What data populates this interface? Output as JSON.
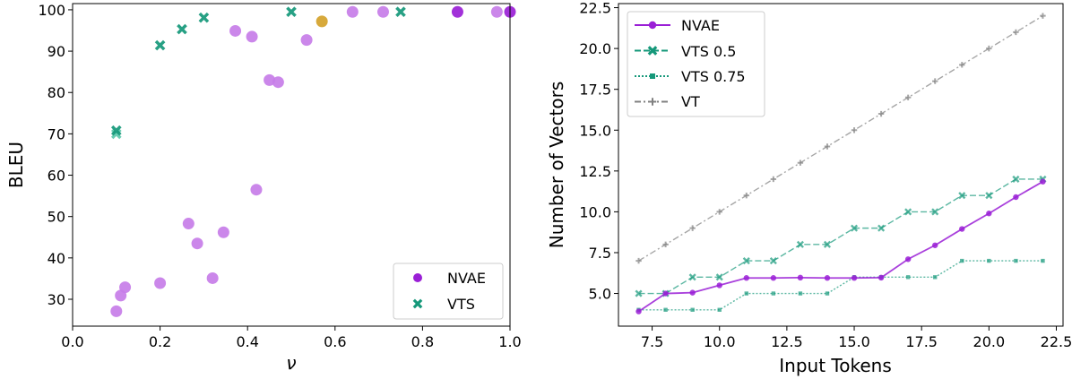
{
  "chart_data": [
    {
      "type": "scatter",
      "xlabel": "ν",
      "ylabel": "BLEU",
      "xlim": [
        0.0,
        1.0
      ],
      "ylim": [
        23.5,
        101.5
      ],
      "xticks": [
        0.0,
        0.2,
        0.4,
        0.6,
        0.8,
        1.0
      ],
      "yticks": [
        30,
        40,
        50,
        60,
        70,
        80,
        90,
        100
      ],
      "xtick_labels": [
        "0.0",
        "0.2",
        "0.4",
        "0.6",
        "0.8",
        "1.0"
      ],
      "ytick_labels": [
        "30",
        "40",
        "50",
        "60",
        "70",
        "80",
        "90",
        "100"
      ],
      "legend_position": "lower-right",
      "series": [
        {
          "name": "NVAE",
          "marker": "circle",
          "legend_color": "#9a1fd6",
          "points": [
            {
              "x": 0.1,
              "y": 27.1,
              "color": "#c77de8"
            },
            {
              "x": 0.11,
              "y": 30.9,
              "color": "#c77de8"
            },
            {
              "x": 0.12,
              "y": 32.9,
              "color": "#c77de8"
            },
            {
              "x": 0.2,
              "y": 33.9,
              "color": "#c77de8"
            },
            {
              "x": 0.265,
              "y": 48.3,
              "color": "#c77de8"
            },
            {
              "x": 0.285,
              "y": 43.5,
              "color": "#c77de8"
            },
            {
              "x": 0.32,
              "y": 35.1,
              "color": "#c77de8"
            },
            {
              "x": 0.345,
              "y": 46.2,
              "color": "#c77de8"
            },
            {
              "x": 0.372,
              "y": 94.9,
              "color": "#c77de8"
            },
            {
              "x": 0.41,
              "y": 93.5,
              "color": "#c77de8"
            },
            {
              "x": 0.42,
              "y": 56.5,
              "color": "#c77de8"
            },
            {
              "x": 0.45,
              "y": 83.0,
              "color": "#c77de8"
            },
            {
              "x": 0.47,
              "y": 82.5,
              "color": "#c77de8"
            },
            {
              "x": 0.535,
              "y": 92.7,
              "color": "#c77de8"
            },
            {
              "x": 0.57,
              "y": 97.2,
              "color": "#d4a22a"
            },
            {
              "x": 0.64,
              "y": 99.5,
              "color": "#c77de8"
            },
            {
              "x": 0.71,
              "y": 99.5,
              "color": "#c77de8"
            },
            {
              "x": 0.88,
              "y": 99.5,
              "color": "#9a1fd6"
            },
            {
              "x": 0.97,
              "y": 99.5,
              "color": "#c77de8"
            },
            {
              "x": 1.0,
              "y": 99.5,
              "color": "#9a1fd6"
            }
          ]
        },
        {
          "name": "VTS",
          "marker": "x",
          "legend_color": "#15987a",
          "points": [
            {
              "x": 0.1,
              "y": 70.0,
              "color": "#5ec9ac"
            },
            {
              "x": 0.1,
              "y": 70.8,
              "color": "#15987a"
            },
            {
              "x": 0.2,
              "y": 91.4,
              "color": "#15987a"
            },
            {
              "x": 0.25,
              "y": 95.3,
              "color": "#15987a"
            },
            {
              "x": 0.3,
              "y": 98.1,
              "color": "#15987a"
            },
            {
              "x": 0.5,
              "y": 99.5,
              "color": "#15987a"
            },
            {
              "x": 0.75,
              "y": 99.5,
              "color": "#15987a"
            }
          ]
        }
      ]
    },
    {
      "type": "line",
      "xlabel": "Input Tokens",
      "ylabel": "Number of Vectors",
      "xlim": [
        6.25,
        22.75
      ],
      "ylim": [
        3.0,
        22.75
      ],
      "xticks": [
        7.5,
        10.0,
        12.5,
        15.0,
        17.5,
        20.0,
        22.5
      ],
      "yticks": [
        5.0,
        7.5,
        10.0,
        12.5,
        15.0,
        17.5,
        20.0,
        22.5
      ],
      "xtick_labels": [
        "7.5",
        "10.0",
        "12.5",
        "15.0",
        "17.5",
        "20.0",
        "22.5"
      ],
      "ytick_labels": [
        "5.0",
        "7.5",
        "10.0",
        "12.5",
        "15.0",
        "17.5",
        "20.0",
        "22.5"
      ],
      "legend_position": "top-left",
      "x": [
        7,
        8,
        9,
        10,
        11,
        12,
        13,
        14,
        15,
        16,
        17,
        18,
        19,
        20,
        21,
        22
      ],
      "series": [
        {
          "name": "NVAE",
          "color": "#9a1fd6",
          "style": "solid",
          "marker": "circle",
          "values": [
            3.9,
            5.0,
            5.05,
            5.5,
            5.95,
            5.95,
            5.97,
            5.95,
            5.95,
            5.97,
            7.1,
            7.95,
            8.95,
            9.9,
            10.9,
            11.85
          ]
        },
        {
          "name": "VTS 0.5",
          "color": "#15987a",
          "style": "dashed",
          "marker": "x",
          "values": [
            5,
            5,
            6,
            6,
            7,
            7,
            8,
            8,
            9,
            9,
            10,
            10,
            11,
            11,
            12,
            12
          ]
        },
        {
          "name": "VTS 0.75",
          "color": "#15987a",
          "style": "dotted",
          "marker": "square",
          "values": [
            4,
            4,
            4,
            4,
            5,
            5,
            5,
            5,
            6,
            6,
            6,
            6,
            7,
            7,
            7,
            7
          ]
        },
        {
          "name": "VT",
          "color": "#808080",
          "style": "dashdot",
          "marker": "plus",
          "values": [
            7,
            8,
            9,
            10,
            11,
            12,
            13,
            14,
            15,
            16,
            17,
            18,
            19,
            20,
            21,
            22
          ]
        }
      ]
    }
  ]
}
